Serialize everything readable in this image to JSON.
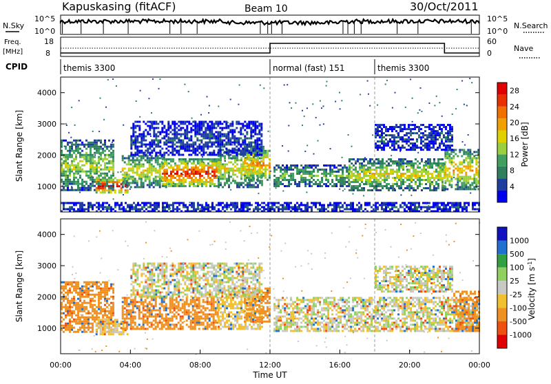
{
  "header": {
    "station": "Kapuskasing (fitACF)",
    "beam": "Beam 10",
    "date": "30/Oct/2011"
  },
  "meta_panels": {
    "nsky_label": "N.Sky",
    "nsearch_label": "N.Search",
    "freq_label_1": "Freq.",
    "freq_label_2": "[MHz]",
    "nave_label": "Nave",
    "cpid_label": "CPID",
    "noise_ticks": [
      "10^5",
      "10^0"
    ],
    "freq_ticks": [
      "18",
      "8"
    ],
    "nave_ticks": [
      "60",
      "0"
    ]
  },
  "cpid_segments": [
    {
      "label": "themis 3300",
      "start_hour": 0,
      "end_hour": 12
    },
    {
      "label": "normal (fast) 151",
      "start_hour": 12,
      "end_hour": 18
    },
    {
      "label": "themis 3300",
      "start_hour": 18,
      "end_hour": 24
    }
  ],
  "chart_data": [
    {
      "type": "heatmap",
      "title": "Power",
      "ylabel": "Slant Range [km]",
      "xlabel": "Time UT",
      "x_ticks": [
        "00:00",
        "04:00",
        "08:00",
        "12:00",
        "16:00",
        "20:00",
        "00:00"
      ],
      "y_ticks": [
        1000,
        2000,
        3000,
        4000
      ],
      "ylim": [
        180,
        4500
      ],
      "xlim_hours": [
        0,
        24
      ],
      "colorbar": {
        "label": "Power [dB]",
        "ticks": [
          4,
          8,
          12,
          16,
          20,
          24,
          28
        ],
        "range": [
          0,
          30
        ],
        "colors": [
          "#0000ee",
          "#1f3fa0",
          "#2f7f5f",
          "#3fa060",
          "#9ad040",
          "#e0d000",
          "#f0a000",
          "#f07000",
          "#e83000",
          "#e00000"
        ]
      },
      "regions": [
        {
          "t0": 0.0,
          "t1": 3.0,
          "r0": 900,
          "r1": 2500,
          "level": 12
        },
        {
          "t0": 2.0,
          "t1": 3.8,
          "r0": 800,
          "r1": 1300,
          "level": 26
        },
        {
          "t0": 3.5,
          "t1": 6.0,
          "r0": 1000,
          "r1": 2000,
          "level": 14
        },
        {
          "t0": 5.8,
          "t1": 9.0,
          "r0": 1000,
          "r1": 1900,
          "level": 22
        },
        {
          "t0": 9.0,
          "t1": 11.5,
          "r0": 1000,
          "r1": 2200,
          "level": 14
        },
        {
          "t0": 10.5,
          "t1": 12.0,
          "r0": 1200,
          "r1": 2300,
          "level": 18
        },
        {
          "t0": 12.2,
          "t1": 16.5,
          "r0": 1000,
          "r1": 1700,
          "level": 10
        },
        {
          "t0": 16.5,
          "t1": 22.0,
          "r0": 900,
          "r1": 1900,
          "level": 14
        },
        {
          "t0": 22.0,
          "t1": 24.0,
          "r0": 900,
          "r1": 2200,
          "level": 16
        },
        {
          "t0": 4.0,
          "t1": 11.5,
          "r0": 2000,
          "r1": 3100,
          "level": 4
        },
        {
          "t0": 18.0,
          "t1": 22.5,
          "r0": 2200,
          "r1": 3000,
          "level": 4
        },
        {
          "t0": 0.0,
          "t1": 24.0,
          "r0": 200,
          "r1": 500,
          "level": 4
        }
      ]
    },
    {
      "type": "heatmap",
      "title": "Velocity",
      "ylabel": "Slant Range [km]",
      "xlabel": "Time UT",
      "x_ticks": [
        "00:00",
        "04:00",
        "08:00",
        "12:00",
        "16:00",
        "20:00",
        "00:00"
      ],
      "y_ticks": [
        1000,
        2000,
        3000,
        4000
      ],
      "ylim": [
        180,
        4500
      ],
      "xlim_hours": [
        0,
        24
      ],
      "colorbar": {
        "label": "Velocity [m s^-1]",
        "ticks": [
          1000,
          500,
          100,
          25,
          -25,
          -100,
          -500,
          -1000
        ],
        "levels": [
          {
            "v": 1000,
            "color": "#1010c0"
          },
          {
            "v": 500,
            "color": "#2070d0"
          },
          {
            "v": 100,
            "color": "#30a040"
          },
          {
            "v": 25,
            "color": "#90d060"
          },
          {
            "v": 0,
            "color": "#c8c8c4"
          },
          {
            "v": -25,
            "color": "#f0c030"
          },
          {
            "v": -100,
            "color": "#f09020"
          },
          {
            "v": -500,
            "color": "#f05010"
          },
          {
            "v": -1000,
            "color": "#e00000"
          }
        ]
      },
      "regions": [
        {
          "t0": 0.0,
          "t1": 3.0,
          "r0": 900,
          "r1": 2500,
          "v": -100
        },
        {
          "t0": 2.0,
          "t1": 3.8,
          "r0": 800,
          "r1": 1300,
          "v": -25
        },
        {
          "t0": 3.5,
          "t1": 9.0,
          "r0": 1000,
          "r1": 2000,
          "v": -100
        },
        {
          "t0": 9.0,
          "t1": 11.5,
          "r0": 1000,
          "r1": 2200,
          "v": -25
        },
        {
          "t0": 10.5,
          "t1": 12.0,
          "r0": 1200,
          "r1": 2300,
          "v": -100
        },
        {
          "t0": 4.0,
          "t1": 11.5,
          "r0": 2000,
          "r1": 3100,
          "v": 0
        },
        {
          "t0": 12.2,
          "t1": 24.0,
          "r0": 900,
          "r1": 2000,
          "v": 0
        },
        {
          "t0": 18.0,
          "t1": 22.5,
          "r0": 2200,
          "r1": 3000,
          "v": 0
        },
        {
          "t0": 22.5,
          "t1": 24.0,
          "r0": 900,
          "r1": 2200,
          "v": -100
        }
      ]
    }
  ]
}
